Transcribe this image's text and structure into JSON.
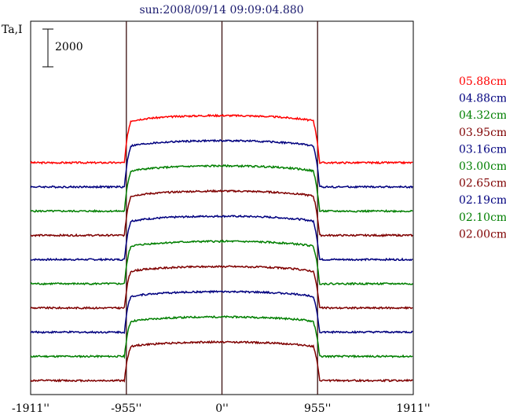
{
  "chart_data": {
    "type": "line",
    "title": "sun:2008/09/14 09:09:04.880",
    "ylabel": "Ta,I",
    "scale_bar_label": "2000",
    "x_ticks": [
      {
        "value": -1911,
        "label": "-1911''"
      },
      {
        "value": -955,
        "label": "-955''"
      },
      {
        "value": 0,
        "label": "0''"
      },
      {
        "value": 955,
        "label": "955''"
      },
      {
        "value": 1911,
        "label": "1911''"
      }
    ],
    "xlim": [
      -1911,
      1911
    ],
    "vertical_markers": [
      -955,
      0,
      955
    ],
    "legend_placement": "right",
    "series": [
      {
        "name": "05.88cm",
        "color": "#ff0000"
      },
      {
        "name": "04.88cm",
        "color": "#00007f"
      },
      {
        "name": "04.32cm",
        "color": "#007f00"
      },
      {
        "name": "03.95cm",
        "color": "#7f0000"
      },
      {
        "name": "03.16cm",
        "color": "#00007f"
      },
      {
        "name": "03.00cm",
        "color": "#007f00"
      },
      {
        "name": "02.65cm",
        "color": "#7f0000"
      },
      {
        "name": "02.19cm",
        "color": "#00007f"
      },
      {
        "name": "02.10cm",
        "color": "#007f00"
      },
      {
        "name": "02.00cm",
        "color": "#7f0000"
      }
    ]
  }
}
